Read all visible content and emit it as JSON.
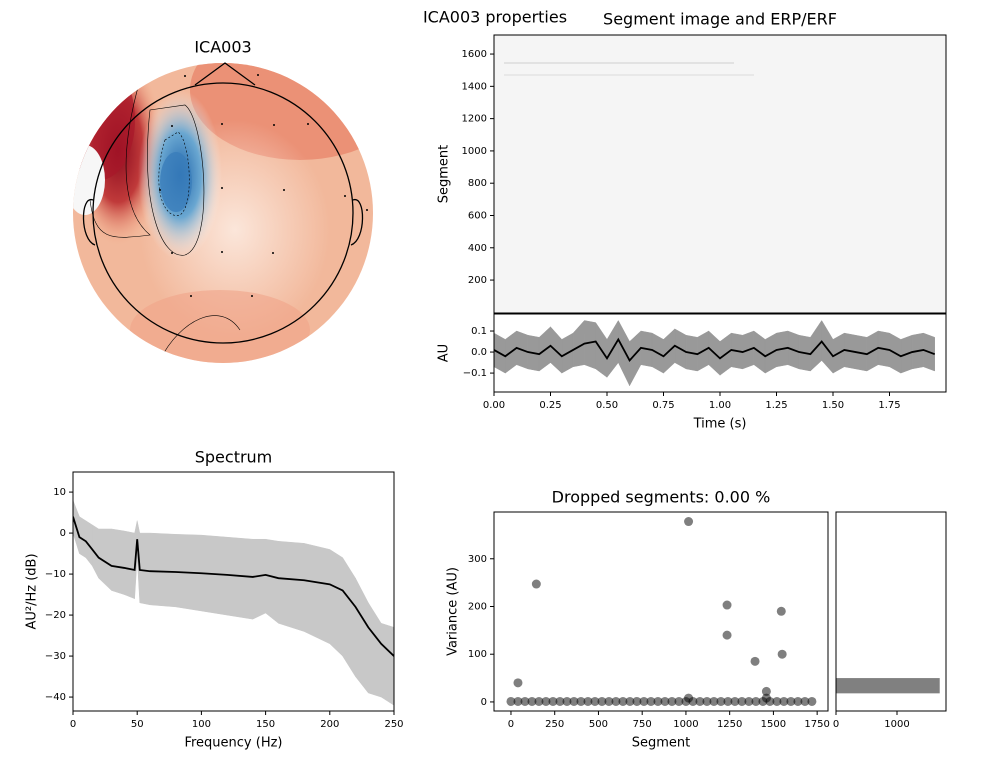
{
  "title": "ICA003 properties",
  "chart_data": [
    {
      "type": "topomap",
      "title": "ICA003"
    },
    {
      "type": "image",
      "title": "Segment image and ERP/ERF",
      "ylabel": "Segment",
      "ylim": [
        -4,
        1718
      ],
      "yticks": [
        200,
        400,
        600,
        800,
        1000,
        1200,
        1400,
        1600
      ]
    },
    {
      "type": "line",
      "xlabel": "Time (s)",
      "ylabel": "AU",
      "color": "#000000",
      "band_color": "#999999",
      "xlim": [
        0,
        2.0
      ],
      "xticks": [
        {
          "value": 0,
          "label": "0.00"
        },
        {
          "value": 0.25,
          "label": "0.25"
        },
        {
          "value": 0.5,
          "label": "0.50"
        },
        {
          "value": 0.75,
          "label": "0.75"
        },
        {
          "value": 1.0,
          "label": "1.00"
        },
        {
          "value": 1.25,
          "label": "1.25"
        },
        {
          "value": 1.5,
          "label": "1.50"
        },
        {
          "value": 1.75,
          "label": "1.75"
        }
      ],
      "ylim": [
        -0.19,
        0.181
      ],
      "yticks": [
        {
          "value": -0.1,
          "label": "−0.1"
        },
        {
          "value": 0.0,
          "label": "0.0"
        },
        {
          "value": 0.1,
          "label": "0.1"
        }
      ],
      "x": [
        0,
        0.05,
        0.1,
        0.15,
        0.2,
        0.25,
        0.3,
        0.35,
        0.4,
        0.45,
        0.5,
        0.55,
        0.6,
        0.65,
        0.7,
        0.75,
        0.8,
        0.85,
        0.9,
        0.95,
        1.0,
        1.05,
        1.1,
        1.15,
        1.2,
        1.25,
        1.3,
        1.35,
        1.4,
        1.45,
        1.5,
        1.55,
        1.6,
        1.65,
        1.7,
        1.75,
        1.8,
        1.85,
        1.9,
        1.95
      ],
      "values": [
        0.01,
        -0.02,
        0.02,
        0.0,
        -0.01,
        0.03,
        -0.02,
        0.01,
        0.04,
        0.05,
        -0.03,
        0.06,
        -0.04,
        0.02,
        0.01,
        -0.02,
        0.03,
        0.0,
        -0.01,
        0.02,
        -0.03,
        0.01,
        0.0,
        0.02,
        -0.02,
        0.01,
        0.02,
        0.0,
        -0.01,
        0.05,
        -0.02,
        0.01,
        0.0,
        -0.01,
        0.02,
        0.01,
        -0.02,
        0.0,
        0.01,
        -0.01
      ],
      "upper": [
        0.09,
        0.06,
        0.1,
        0.08,
        0.07,
        0.12,
        0.06,
        0.09,
        0.15,
        0.14,
        0.06,
        0.15,
        0.05,
        0.1,
        0.09,
        0.06,
        0.11,
        0.08,
        0.07,
        0.1,
        0.05,
        0.09,
        0.08,
        0.1,
        0.06,
        0.09,
        0.1,
        0.08,
        0.07,
        0.15,
        0.06,
        0.09,
        0.08,
        0.07,
        0.1,
        0.09,
        0.06,
        0.08,
        0.09,
        0.07
      ],
      "lower": [
        -0.07,
        -0.1,
        -0.06,
        -0.08,
        -0.09,
        -0.05,
        -0.1,
        -0.07,
        -0.06,
        -0.08,
        -0.12,
        -0.05,
        -0.16,
        -0.06,
        -0.07,
        -0.1,
        -0.05,
        -0.08,
        -0.09,
        -0.06,
        -0.11,
        -0.07,
        -0.08,
        -0.06,
        -0.1,
        -0.07,
        -0.06,
        -0.08,
        -0.09,
        -0.04,
        -0.1,
        -0.07,
        -0.08,
        -0.09,
        -0.06,
        -0.07,
        -0.1,
        -0.08,
        -0.07,
        -0.09
      ]
    },
    {
      "type": "line",
      "title": "Spectrum",
      "xlabel": "Frequency (Hz)",
      "ylabel": "AU²/Hz (dB)",
      "color": "#000000",
      "band_color": "#c8c8c8",
      "xlim": [
        0,
        250
      ],
      "xticks": [
        0,
        50,
        100,
        150,
        200,
        250
      ],
      "ylim": [
        -43.4,
        14.9
      ],
      "yticks": [
        {
          "value": -40,
          "label": "−40"
        },
        {
          "value": -30,
          "label": "−30"
        },
        {
          "value": -20,
          "label": "−20"
        },
        {
          "value": -10,
          "label": "−10"
        },
        0,
        10
      ],
      "x": [
        0,
        5,
        10,
        15,
        20,
        30,
        40,
        48,
        50,
        52,
        60,
        80,
        100,
        120,
        140,
        150,
        160,
        180,
        200,
        210,
        220,
        230,
        240,
        250
      ],
      "values": [
        4,
        -1,
        -2,
        -4,
        -6,
        -8,
        -8.5,
        -9,
        -1.5,
        -9,
        -9.3,
        -9.5,
        -9.8,
        -10.2,
        -10.7,
        -10.2,
        -11,
        -11.5,
        -12.5,
        -14,
        -18,
        -23,
        -27,
        -30
      ],
      "upper": [
        8,
        4,
        3,
        2,
        1,
        1,
        0.5,
        0,
        3,
        0,
        0,
        -0.3,
        -0.5,
        -1,
        -1.5,
        -1.5,
        -2,
        -2.5,
        -4,
        -6,
        -11,
        -17,
        -22,
        -23
      ],
      "lower": [
        0,
        -5,
        -6,
        -8,
        -11,
        -14,
        -15,
        -16,
        -6,
        -17,
        -17.5,
        -18,
        -19,
        -20,
        -21,
        -19.5,
        -22,
        -24,
        -27,
        -30,
        -35,
        -39,
        -40,
        -42
      ]
    },
    {
      "type": "scatter",
      "title": "Dropped segments: 0.00 %",
      "xlabel": "Segment",
      "ylabel": "Variance (AU)",
      "color": "#000000",
      "xlim": [
        -97,
        1812
      ],
      "xticks": [
        0,
        250,
        500,
        750,
        1000,
        1250,
        1500,
        1750
      ],
      "ylim": [
        -19,
        398
      ],
      "yticks": [
        0,
        100,
        200,
        300
      ],
      "x": [
        0,
        40,
        80,
        120,
        160,
        200,
        240,
        280,
        320,
        360,
        400,
        440,
        480,
        520,
        560,
        600,
        640,
        680,
        720,
        760,
        800,
        840,
        880,
        920,
        960,
        1000,
        1040,
        1080,
        1120,
        1160,
        1200,
        1240,
        1280,
        1320,
        1360,
        1400,
        1440,
        1480,
        1520,
        1560,
        1600,
        1640,
        1680,
        1720,
        40,
        145,
        1015,
        1015,
        1235,
        1235,
        1395,
        1460,
        1460,
        1545,
        1550
      ],
      "values": [
        1,
        1,
        1,
        1,
        1,
        1,
        1,
        1,
        1,
        1,
        1,
        1,
        1,
        1,
        1,
        1,
        1,
        1,
        1,
        1,
        1,
        1,
        1,
        1,
        1,
        1,
        1,
        1,
        1,
        1,
        1,
        1,
        1,
        1,
        1,
        1,
        1,
        1,
        1,
        1,
        1,
        1,
        1,
        1,
        40,
        247,
        378,
        8,
        203,
        140,
        85,
        22,
        8,
        190,
        100
      ]
    },
    {
      "type": "histogram",
      "orientation": "horizontal",
      "color": "#808080",
      "xlim": [
        0,
        1803
      ],
      "xticks": [
        0,
        1000
      ],
      "ylim": [
        -19,
        398
      ],
      "bins": [
        18,
        50
      ],
      "counts": [
        1700
      ]
    }
  ]
}
